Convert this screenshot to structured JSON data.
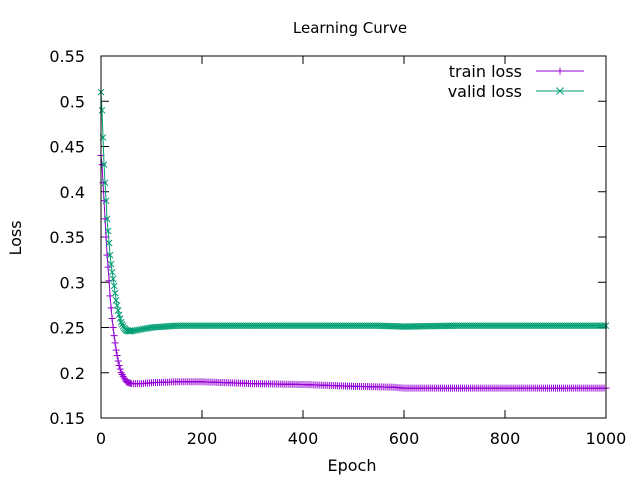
{
  "chart_data": {
    "type": "line",
    "title": "Learning Curve",
    "xlabel": "Epoch",
    "ylabel": "Loss",
    "xlim": [
      0,
      1000
    ],
    "ylim": [
      0.15,
      0.55
    ],
    "x_ticks": [
      "0",
      "200",
      "400",
      "600",
      "800",
      "1000"
    ],
    "y_ticks": [
      "0.15",
      "0.2",
      "0.25",
      "0.3",
      "0.35",
      "0.4",
      "0.45",
      "0.5",
      "0.55"
    ],
    "grid": false,
    "legend_position": "top-right",
    "series": [
      {
        "name": "train loss",
        "color": "#9400d3",
        "marker": "plus",
        "x": [
          0,
          2,
          4,
          6,
          8,
          10,
          12,
          15,
          18,
          21,
          25,
          30,
          35,
          40,
          45,
          50,
          55,
          60,
          70,
          80,
          100,
          150,
          200,
          250,
          300,
          400,
          500,
          580,
          600,
          700,
          800,
          900,
          1000
        ],
        "y": [
          0.44,
          0.43,
          0.41,
          0.39,
          0.37,
          0.35,
          0.33,
          0.31,
          0.285,
          0.265,
          0.245,
          0.225,
          0.21,
          0.2,
          0.195,
          0.19,
          0.189,
          0.188,
          0.188,
          0.188,
          0.189,
          0.19,
          0.19,
          0.189,
          0.188,
          0.187,
          0.185,
          0.184,
          0.183,
          0.183,
          0.183,
          0.183,
          0.183
        ]
      },
      {
        "name": "valid loss",
        "color": "#009e73",
        "marker": "cross",
        "x": [
          0,
          2,
          4,
          6,
          8,
          10,
          12,
          15,
          18,
          21,
          25,
          30,
          35,
          40,
          45,
          50,
          55,
          60,
          70,
          80,
          100,
          150,
          200,
          300,
          400,
          500,
          550,
          600,
          700,
          800,
          900,
          1000
        ],
        "y": [
          0.51,
          0.49,
          0.46,
          0.43,
          0.41,
          0.39,
          0.37,
          0.35,
          0.33,
          0.315,
          0.3,
          0.28,
          0.266,
          0.256,
          0.25,
          0.247,
          0.246,
          0.246,
          0.247,
          0.248,
          0.25,
          0.252,
          0.252,
          0.252,
          0.252,
          0.252,
          0.252,
          0.251,
          0.252,
          0.252,
          0.252,
          0.252
        ]
      }
    ]
  }
}
